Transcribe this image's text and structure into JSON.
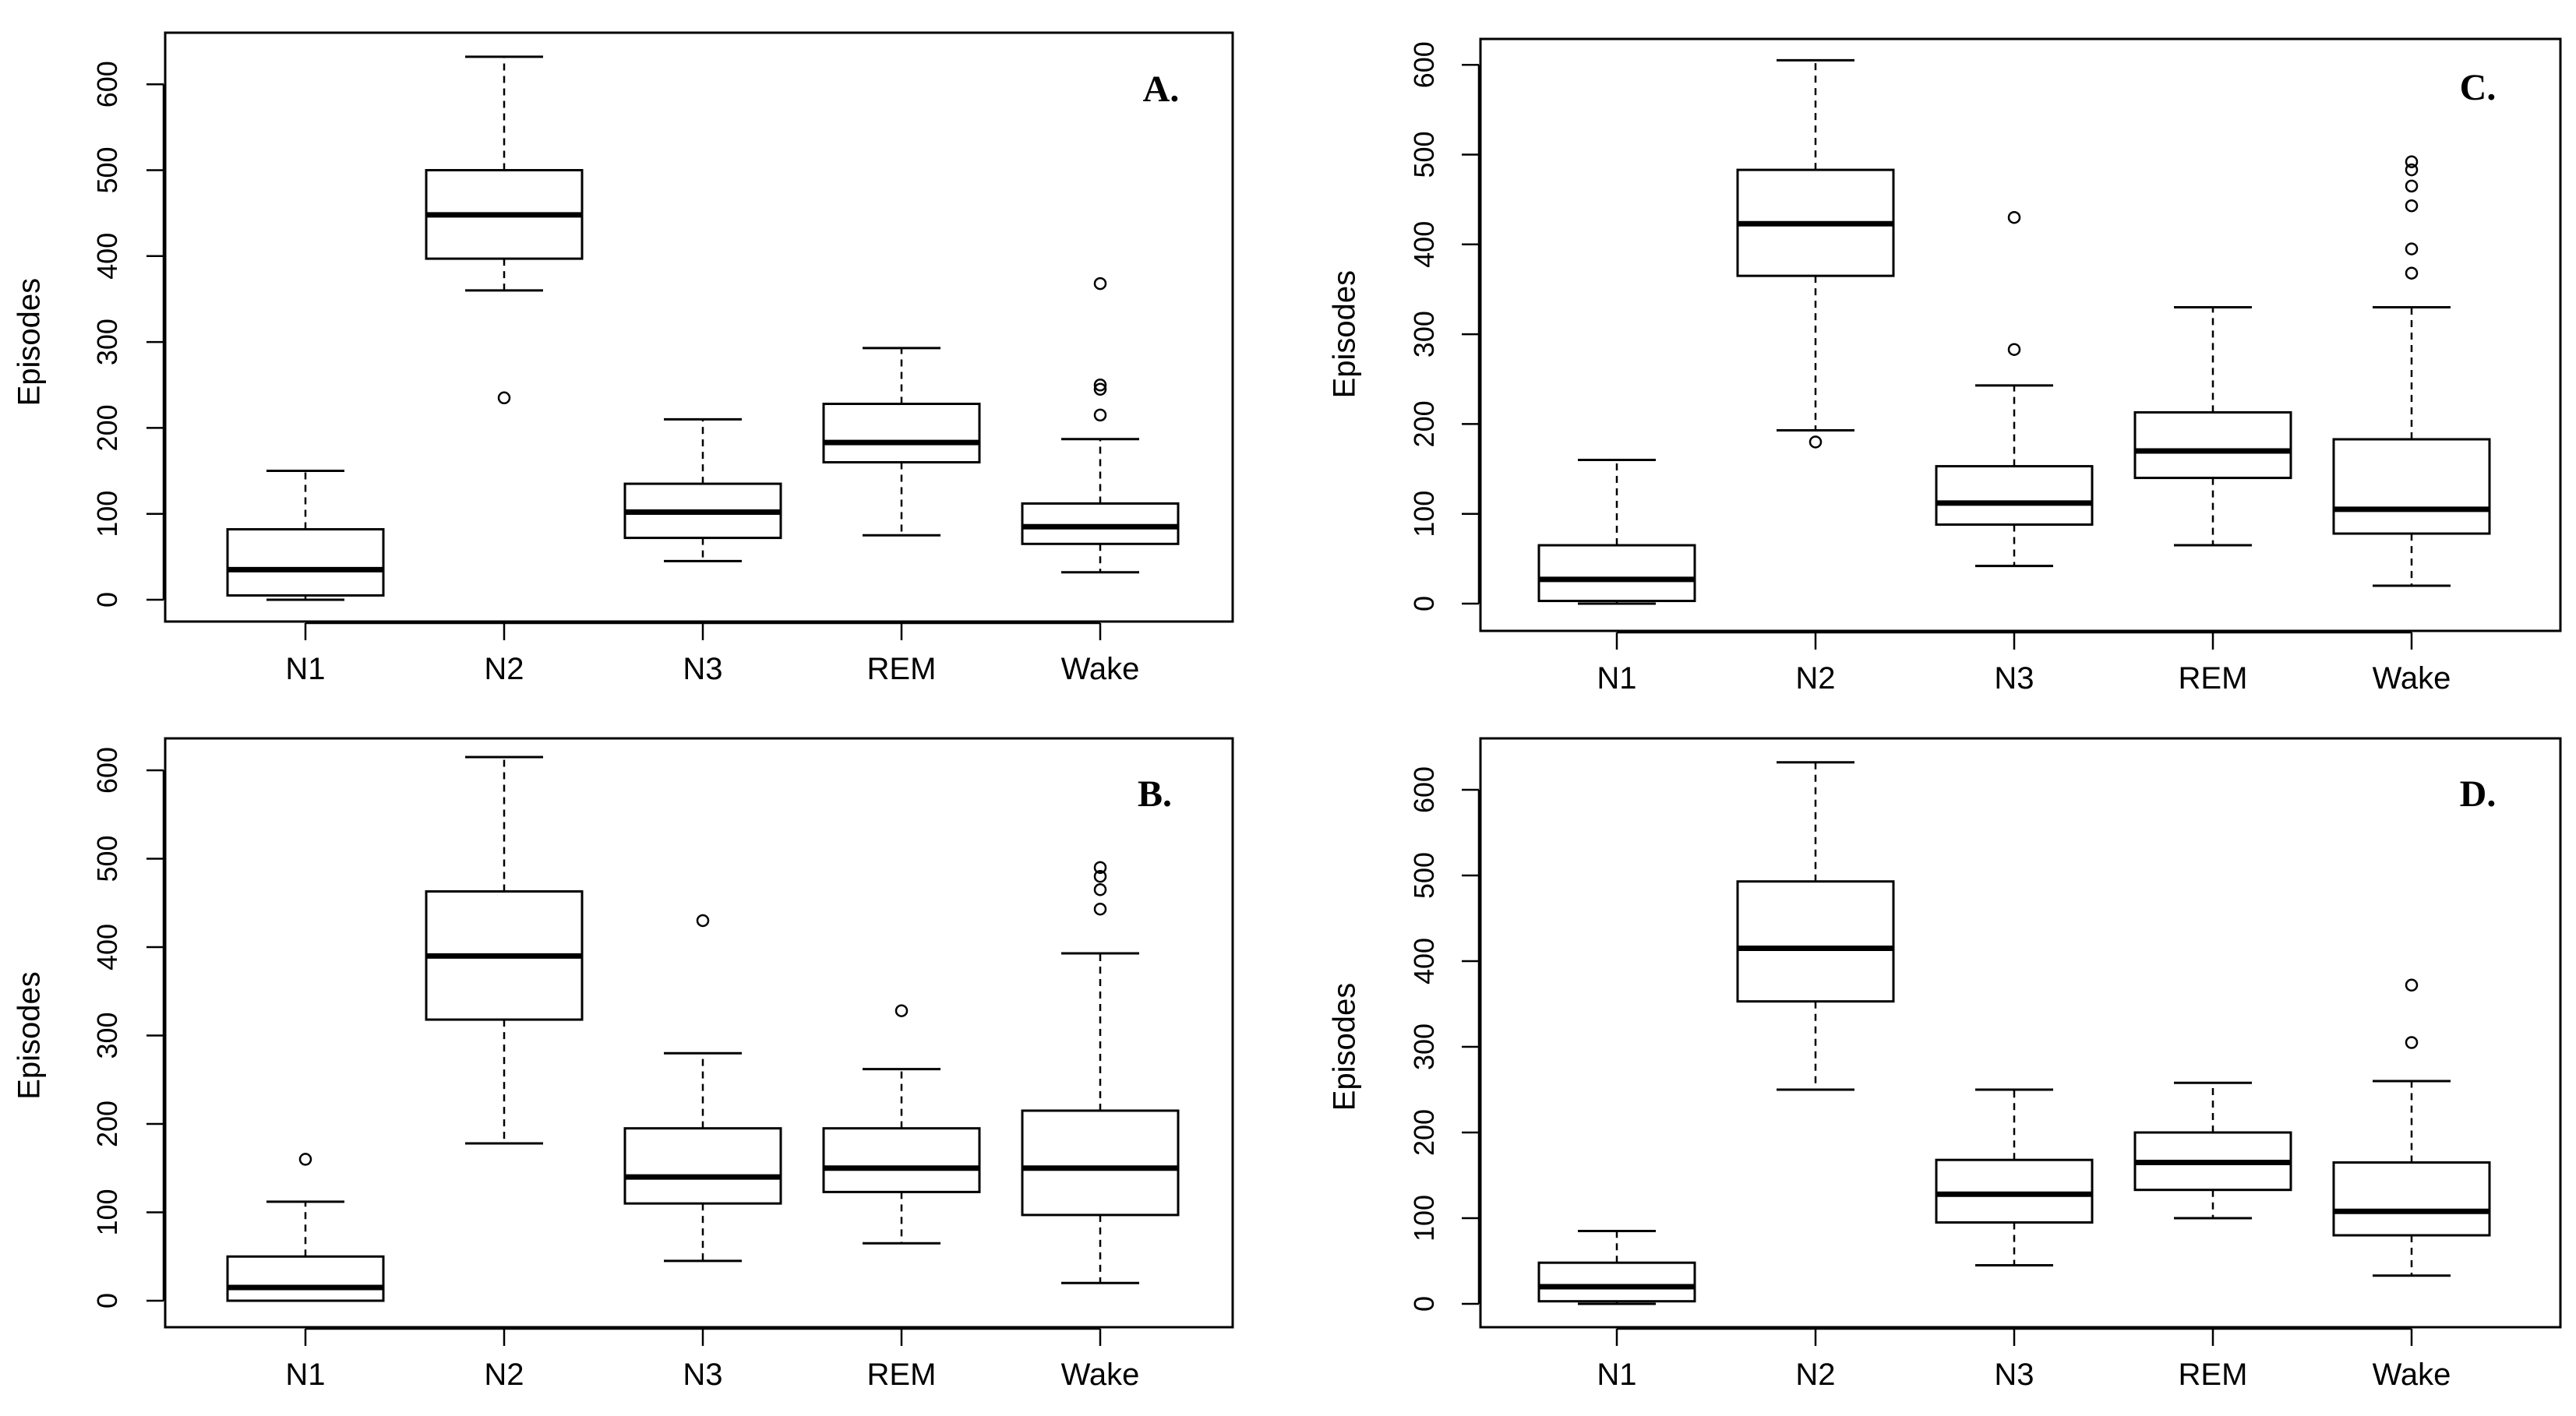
{
  "chart_data": [
    {
      "type": "boxplot",
      "label": "A.",
      "ylabel": "Episodes",
      "ylim": [
        0,
        600
      ],
      "yticks": [
        0,
        100,
        200,
        300,
        400,
        500,
        600
      ],
      "categories": [
        "N1",
        "N2",
        "N3",
        "REM",
        "Wake"
      ],
      "boxes": [
        {
          "min": 0,
          "q1": 5,
          "median": 35,
          "q3": 82,
          "max": 150,
          "outliers": []
        },
        {
          "min": 360,
          "q1": 397,
          "median": 448,
          "q3": 500,
          "max": 632,
          "outliers": [
            235
          ]
        },
        {
          "min": 45,
          "q1": 72,
          "median": 102,
          "q3": 135,
          "max": 210,
          "outliers": []
        },
        {
          "min": 75,
          "q1": 160,
          "median": 183,
          "q3": 228,
          "max": 293,
          "outliers": []
        },
        {
          "min": 32,
          "q1": 65,
          "median": 85,
          "q3": 112,
          "max": 187,
          "outliers": [
            215,
            245,
            250,
            368
          ]
        }
      ]
    },
    {
      "type": "boxplot",
      "label": "C.",
      "ylabel": "Episodes",
      "ylim": [
        0,
        600
      ],
      "yticks": [
        0,
        100,
        200,
        300,
        400,
        500,
        600
      ],
      "categories": [
        "N1",
        "N2",
        "N3",
        "REM",
        "Wake"
      ],
      "boxes": [
        {
          "min": 0,
          "q1": 3,
          "median": 27,
          "q3": 65,
          "max": 160,
          "outliers": []
        },
        {
          "min": 193,
          "q1": 365,
          "median": 423,
          "q3": 483,
          "max": 605,
          "outliers": [
            180
          ]
        },
        {
          "min": 42,
          "q1": 88,
          "median": 112,
          "q3": 153,
          "max": 243,
          "outliers": [
            283,
            430
          ]
        },
        {
          "min": 65,
          "q1": 140,
          "median": 170,
          "q3": 213,
          "max": 330,
          "outliers": []
        },
        {
          "min": 20,
          "q1": 78,
          "median": 105,
          "q3": 183,
          "max": 330,
          "outliers": [
            368,
            395,
            443,
            465,
            483,
            492
          ]
        }
      ]
    },
    {
      "type": "boxplot",
      "label": "B.",
      "ylabel": "Episodes",
      "ylim": [
        0,
        600
      ],
      "yticks": [
        0,
        100,
        200,
        300,
        400,
        500,
        600
      ],
      "categories": [
        "N1",
        "N2",
        "N3",
        "REM",
        "Wake"
      ],
      "boxes": [
        {
          "min": 0,
          "q1": 0,
          "median": 15,
          "q3": 50,
          "max": 112,
          "outliers": [
            160
          ]
        },
        {
          "min": 178,
          "q1": 318,
          "median": 390,
          "q3": 463,
          "max": 615,
          "outliers": []
        },
        {
          "min": 45,
          "q1": 110,
          "median": 140,
          "q3": 195,
          "max": 280,
          "outliers": [
            430
          ]
        },
        {
          "min": 65,
          "q1": 123,
          "median": 150,
          "q3": 195,
          "max": 262,
          "outliers": [
            328
          ]
        },
        {
          "min": 20,
          "q1": 97,
          "median": 150,
          "q3": 215,
          "max": 393,
          "outliers": [
            443,
            465,
            480,
            490
          ]
        }
      ]
    },
    {
      "type": "boxplot",
      "label": "D.",
      "ylabel": "Episodes",
      "ylim": [
        0,
        600
      ],
      "yticks": [
        0,
        100,
        200,
        300,
        400,
        500,
        600
      ],
      "categories": [
        "N1",
        "N2",
        "N3",
        "REM",
        "Wake"
      ],
      "boxes": [
        {
          "min": 0,
          "q1": 3,
          "median": 20,
          "q3": 48,
          "max": 85,
          "outliers": []
        },
        {
          "min": 250,
          "q1": 353,
          "median": 415,
          "q3": 493,
          "max": 632,
          "outliers": []
        },
        {
          "min": 45,
          "q1": 95,
          "median": 128,
          "q3": 168,
          "max": 250,
          "outliers": []
        },
        {
          "min": 100,
          "q1": 133,
          "median": 165,
          "q3": 200,
          "max": 258,
          "outliers": []
        },
        {
          "min": 33,
          "q1": 80,
          "median": 108,
          "q3": 165,
          "max": 260,
          "outliers": [
            305,
            372
          ]
        }
      ]
    }
  ]
}
